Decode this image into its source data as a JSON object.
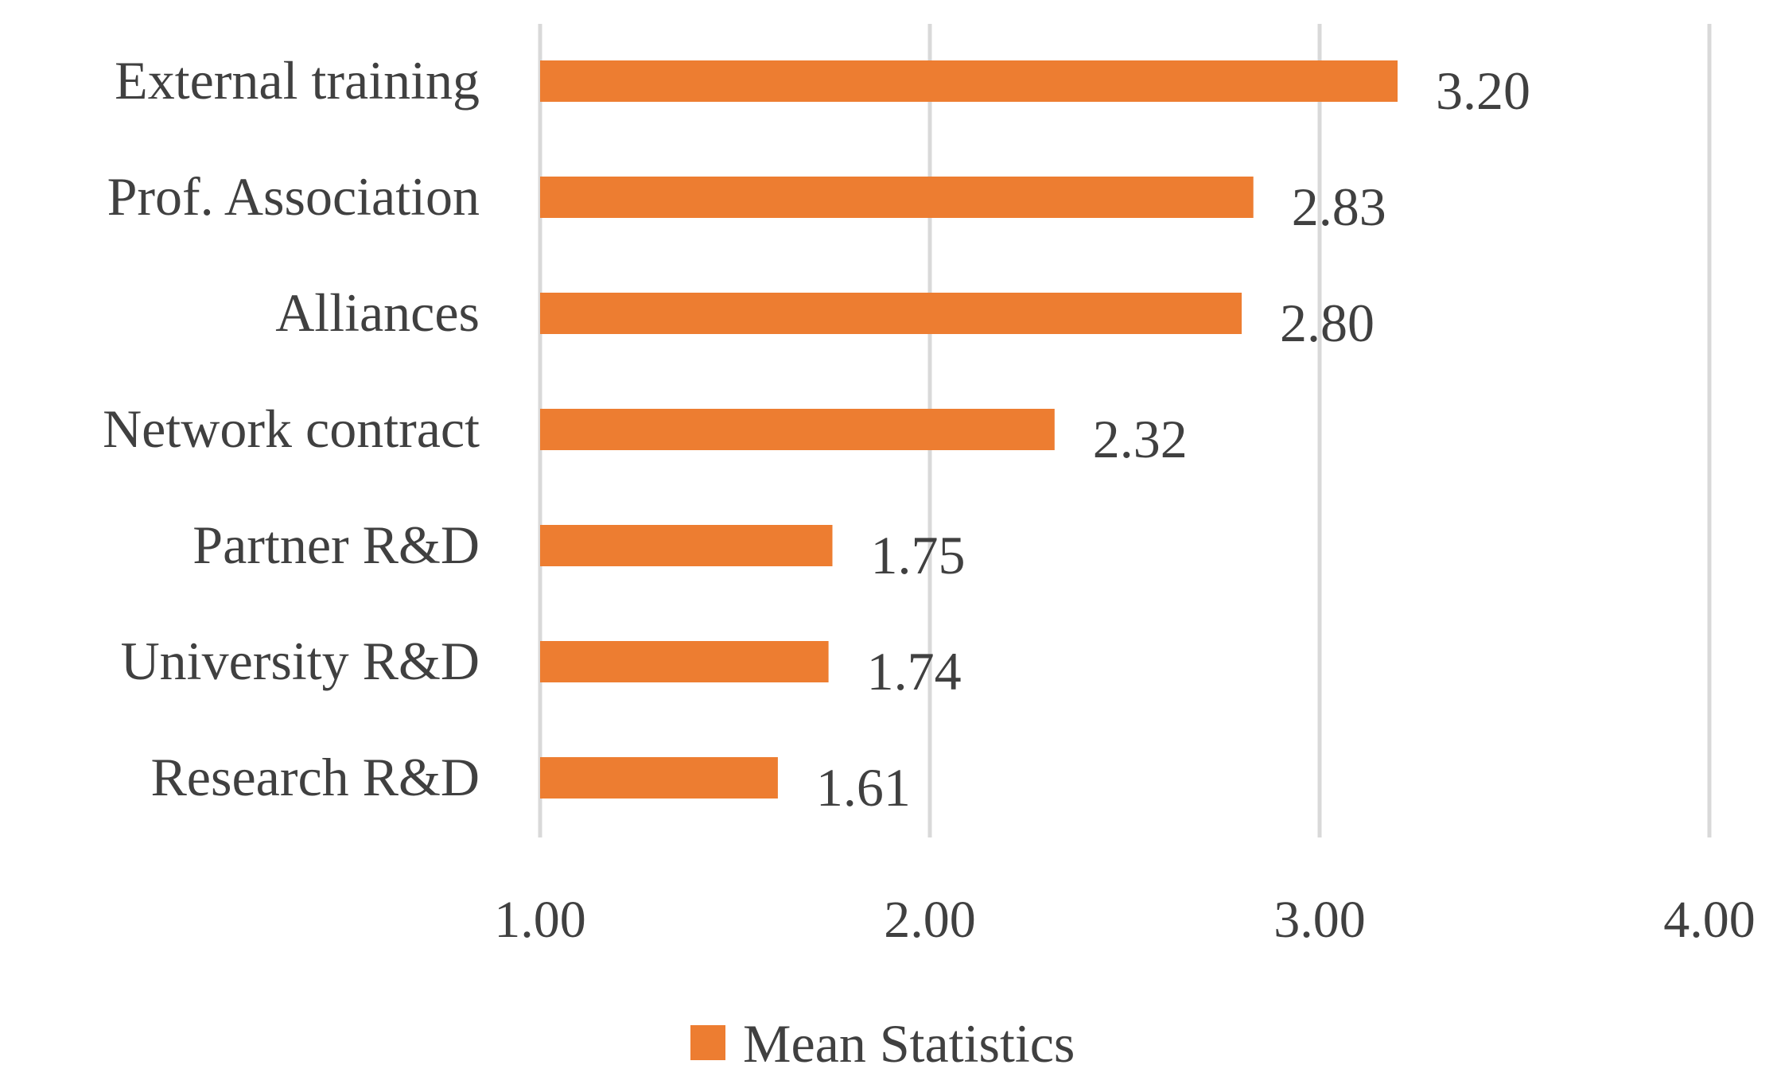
{
  "chart_data": {
    "type": "bar",
    "orientation": "horizontal",
    "title": "",
    "xlabel": "",
    "ylabel": "",
    "categories": [
      "External training",
      "Prof. Association",
      "Alliances",
      "Network contract",
      "Partner R&D",
      "University R&D",
      "Research R&D"
    ],
    "series": [
      {
        "name": "Mean Statistics",
        "values": [
          3.2,
          2.83,
          2.8,
          2.32,
          1.75,
          1.74,
          1.61
        ],
        "value_labels": [
          "3.20",
          "2.83",
          "2.80",
          "2.32",
          "1.75",
          "1.74",
          "1.61"
        ],
        "color": "#ED7D31"
      }
    ],
    "xlim": [
      1.0,
      4.0
    ],
    "xticks": [
      1.0,
      2.0,
      3.0,
      4.0
    ],
    "xtick_labels": [
      "1.00",
      "2.00",
      "3.00",
      "4.00"
    ],
    "grid": true,
    "gridline_color": "#D9D9D9",
    "text_color": "#404040",
    "legend": {
      "position": "bottom",
      "label": "Mean Statistics"
    }
  }
}
